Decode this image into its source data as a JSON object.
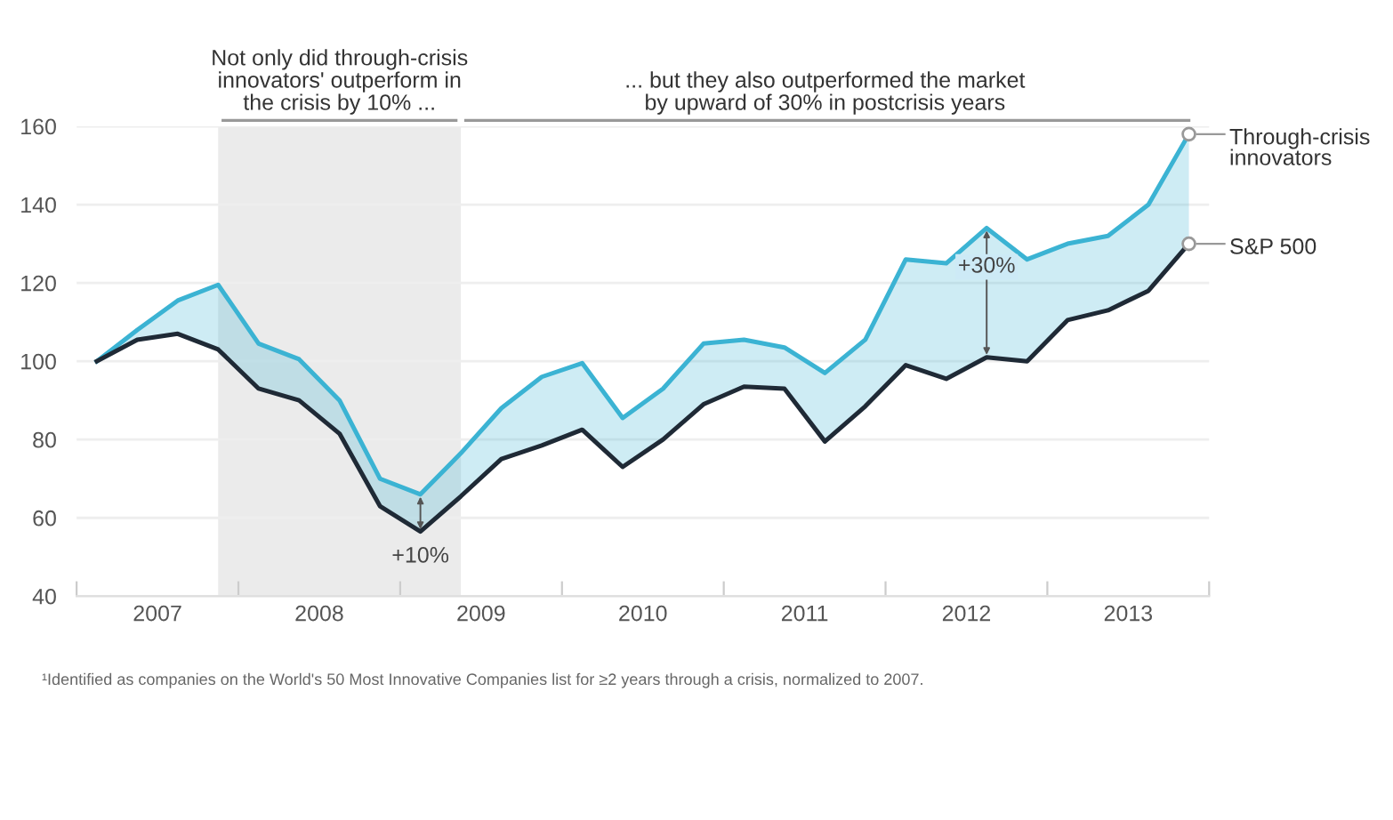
{
  "chart_data": {
    "type": "line",
    "x": [
      2007.125,
      2007.375,
      2007.625,
      2007.875,
      2008.125,
      2008.375,
      2008.625,
      2008.875,
      2009.125,
      2009.375,
      2009.625,
      2009.875,
      2010.125,
      2010.375,
      2010.625,
      2010.875,
      2011.125,
      2011.375,
      2011.625,
      2011.875,
      2012.125,
      2012.375,
      2012.625,
      2012.875,
      2013.125,
      2013.375,
      2013.625,
      2013.875
    ],
    "series": [
      {
        "name": "Through-crisis innovators",
        "color": "#3bb3d3",
        "values": [
          100,
          108,
          115.5,
          119.5,
          104.5,
          100.5,
          90,
          70,
          66,
          76.5,
          88,
          96,
          99.5,
          85.5,
          93,
          104.5,
          105.5,
          103.5,
          97,
          105.5,
          126,
          125,
          134,
          126,
          130,
          132,
          140,
          158
        ],
        "lower": [
          100,
          105.5,
          107,
          103,
          93,
          90,
          81.5,
          63,
          56.5,
          65.5,
          75,
          78.5,
          82.5,
          73,
          80,
          89,
          93.5,
          93,
          79.5,
          88.5,
          99,
          95.5,
          101,
          100,
          110.5,
          113,
          118,
          130
        ],
        "upper": [
          100,
          108,
          115.5,
          119.5,
          104.5,
          100.5,
          90,
          70,
          66,
          76.5,
          88,
          96,
          99.5,
          85.5,
          93,
          104.5,
          105.5,
          103.5,
          97,
          105.5,
          126,
          125,
          134,
          126,
          130,
          132,
          140,
          158
        ]
      },
      {
        "name": "S&P 500",
        "color": "#1f2a36",
        "values": [
          100,
          105.5,
          107,
          103,
          93,
          90,
          81.5,
          63,
          56.5,
          65.5,
          75,
          78.5,
          82.5,
          73,
          80,
          89,
          93.5,
          93,
          79.5,
          88.5,
          99,
          95.5,
          101,
          100,
          110.5,
          113,
          118,
          130
        ]
      }
    ],
    "xlim": [
      2007,
      2014
    ],
    "xticks": [
      {
        "value": 2007,
        "label": null
      },
      {
        "value": 2007.5,
        "label": "2007"
      },
      {
        "value": 2008,
        "label": null
      },
      {
        "value": 2008.5,
        "label": "2008"
      },
      {
        "value": 2009,
        "label": null
      },
      {
        "value": 2009.5,
        "label": "2009"
      },
      {
        "value": 2010,
        "label": null
      },
      {
        "value": 2010.5,
        "label": "2010"
      },
      {
        "value": 2011,
        "label": null
      },
      {
        "value": 2011.5,
        "label": "2011"
      },
      {
        "value": 2012,
        "label": null
      },
      {
        "value": 2012.5,
        "label": "2012"
      },
      {
        "value": 2013,
        "label": null
      },
      {
        "value": 2013.5,
        "label": "2013"
      },
      {
        "value": 2014,
        "label": null
      }
    ],
    "ylim": [
      40,
      160
    ],
    "yticks": [
      40,
      60,
      80,
      100,
      120,
      140,
      160
    ],
    "grid": "y",
    "legend": "right",
    "bands": [
      {
        "axis": "x",
        "from": 2007.875,
        "to": 2009.375,
        "label": "Not only did through-crisis\ninnovators' outperform in\nthe crisis by 10% ...",
        "color": "#ebebeb"
      }
    ],
    "annotations": [
      "... but they also outperformed the market\nby upward of 30% in postcrisis years",
      {
        "text": "+10%",
        "x": 2009.125,
        "y": 56.5
      },
      {
        "text": "+30%",
        "x": 2012.625,
        "y": 134
      },
      "¹Identified as companies on the World's 50 Most Innovative Companies list for ≥2 years through a crisis, normalized to 2007."
    ]
  }
}
